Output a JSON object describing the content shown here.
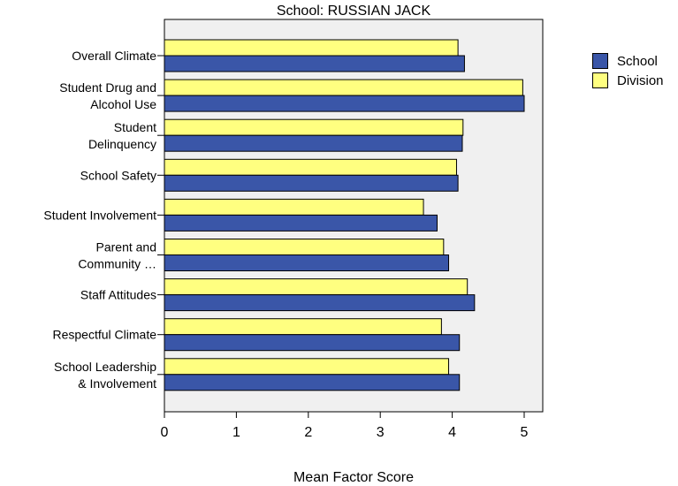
{
  "chart_data": {
    "type": "bar",
    "orientation": "horizontal",
    "title": "School: RUSSIAN JACK",
    "xlabel": "Mean Factor Score",
    "ylabel": "",
    "xlim": [
      0,
      5.25
    ],
    "xticks": [
      "0",
      "1",
      "2",
      "3",
      "4",
      "5"
    ],
    "grid": false,
    "legend_position": "top-right",
    "categories": [
      [
        "Overall Climate"
      ],
      [
        "Student Drug and",
        "Alcohol Use"
      ],
      [
        "Student",
        "Delinquency"
      ],
      [
        "School Safety"
      ],
      [
        "Student Involvement"
      ],
      [
        "Parent and",
        "Community …"
      ],
      [
        "Staff Attitudes"
      ],
      [
        "Respectful Climate"
      ],
      [
        "School Leadership",
        "& Involvement"
      ]
    ],
    "series": [
      {
        "name": "School",
        "color": "#3a56a8",
        "values": [
          4.17,
          5.0,
          4.14,
          4.08,
          3.79,
          3.95,
          4.31,
          4.1,
          4.1
        ]
      },
      {
        "name": "Division",
        "color": "#ffff80",
        "values": [
          4.08,
          4.98,
          4.15,
          4.06,
          3.6,
          3.88,
          4.21,
          3.85,
          3.95
        ]
      }
    ]
  },
  "colors": {
    "plot_background": "#f0f0f0",
    "school": "#3a56a8",
    "division": "#ffff80"
  }
}
